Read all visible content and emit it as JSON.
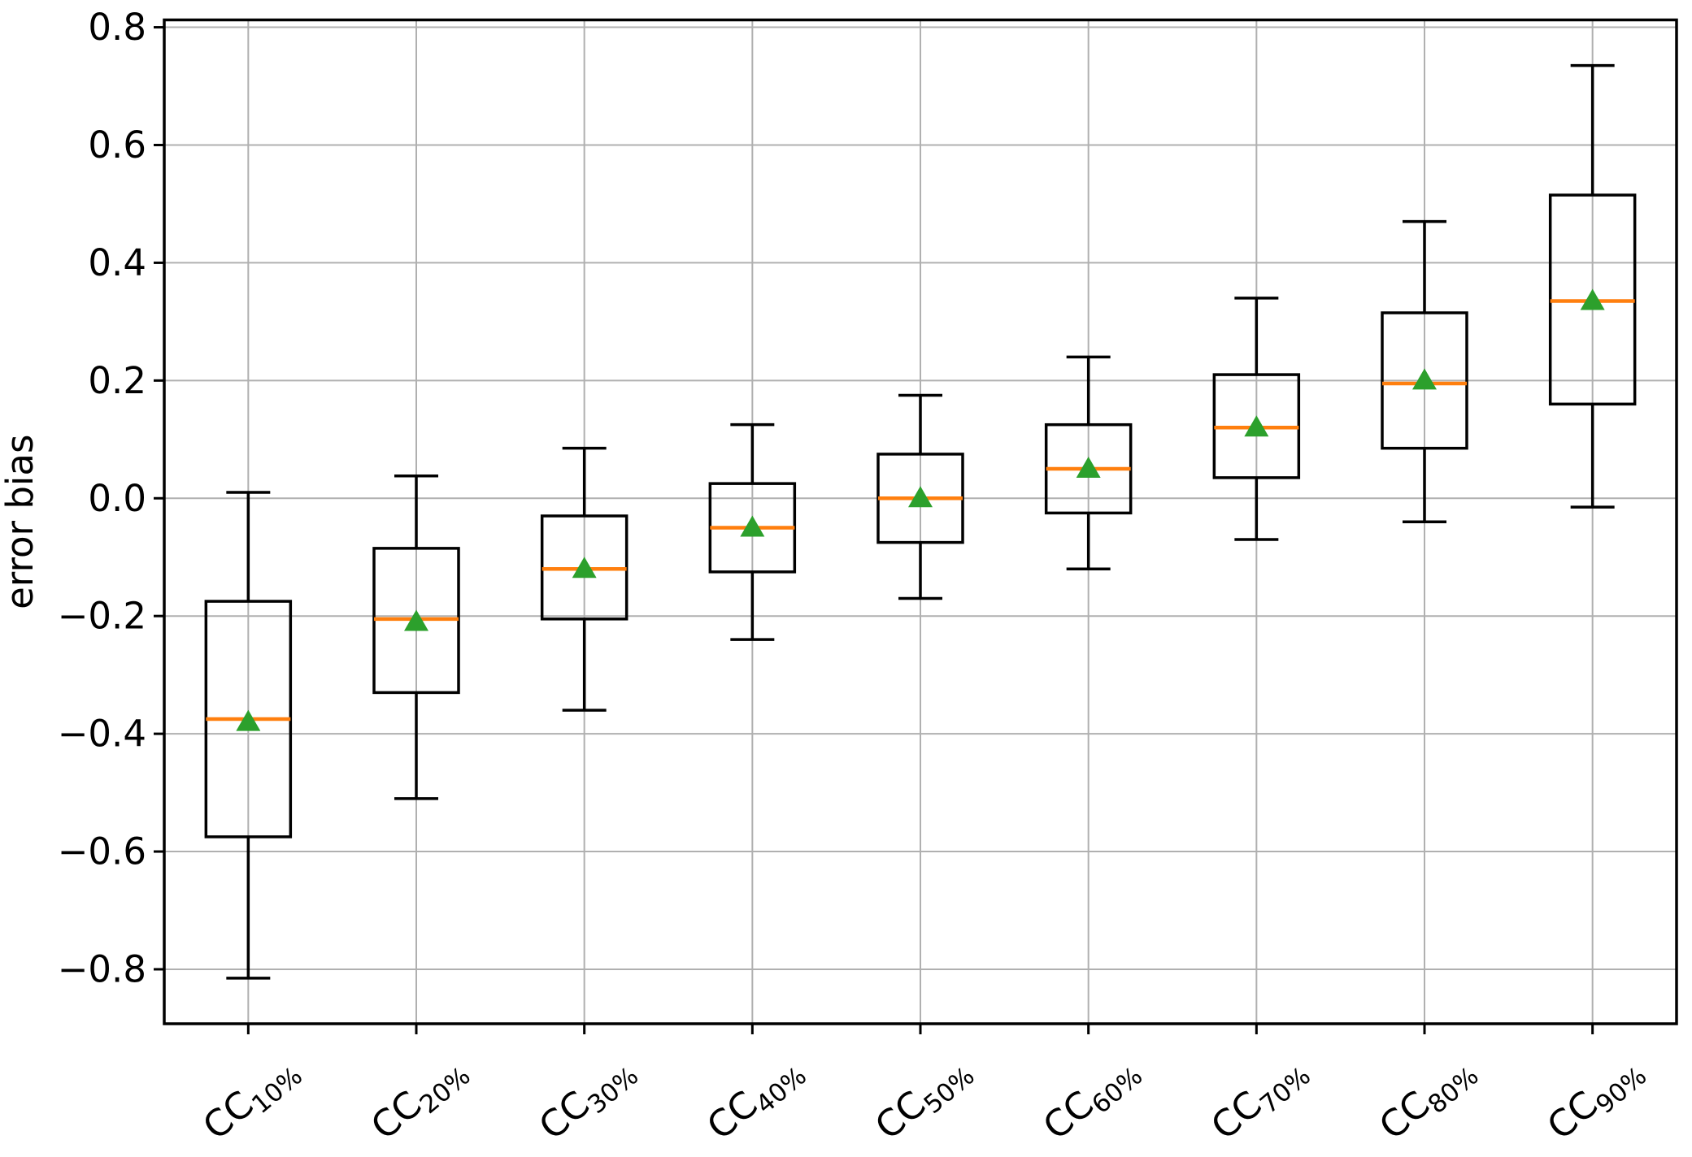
{
  "chart_data": {
    "type": "boxplot",
    "title": "",
    "xlabel": "",
    "ylabel": "error bias",
    "ylim": [
      -0.8925,
      0.8125
    ],
    "yticks": [
      0.8,
      0.6,
      0.4,
      0.2,
      0.0,
      -0.2,
      -0.4,
      -0.6,
      -0.8
    ],
    "ytick_labels": [
      "0.8",
      "0.6",
      "0.4",
      "0.2",
      "0.0",
      "−0.2",
      "−0.4",
      "−0.6",
      "−0.8"
    ],
    "grid": true,
    "legend": false,
    "categories": [
      {
        "base": "CC",
        "sub": "10%",
        "display": "CC10%"
      },
      {
        "base": "CC",
        "sub": "20%",
        "display": "CC20%"
      },
      {
        "base": "CC",
        "sub": "30%",
        "display": "CC30%"
      },
      {
        "base": "CC",
        "sub": "40%",
        "display": "CC40%"
      },
      {
        "base": "CC",
        "sub": "50%",
        "display": "CC50%"
      },
      {
        "base": "CC",
        "sub": "60%",
        "display": "CC60%"
      },
      {
        "base": "CC",
        "sub": "70%",
        "display": "CC70%"
      },
      {
        "base": "CC",
        "sub": "80%",
        "display": "CC80%"
      },
      {
        "base": "CC",
        "sub": "90%",
        "display": "CC90%"
      }
    ],
    "series": [
      {
        "label": "CC10%",
        "whisker_low": -0.815,
        "q1": -0.575,
        "median": -0.375,
        "mean": -0.38,
        "q3": -0.175,
        "whisker_high": 0.01
      },
      {
        "label": "CC20%",
        "whisker_low": -0.51,
        "q1": -0.33,
        "median": -0.205,
        "mean": -0.21,
        "q3": -0.085,
        "whisker_high": 0.038
      },
      {
        "label": "CC30%",
        "whisker_low": -0.36,
        "q1": -0.205,
        "median": -0.12,
        "mean": -0.12,
        "q3": -0.03,
        "whisker_high": 0.085
      },
      {
        "label": "CC40%",
        "whisker_low": -0.24,
        "q1": -0.125,
        "median": -0.05,
        "mean": -0.05,
        "q3": 0.025,
        "whisker_high": 0.125
      },
      {
        "label": "CC50%",
        "whisker_low": -0.17,
        "q1": -0.075,
        "median": 0.0,
        "mean": 0.0,
        "q3": 0.075,
        "whisker_high": 0.175
      },
      {
        "label": "CC60%",
        "whisker_low": -0.12,
        "q1": -0.025,
        "median": 0.05,
        "mean": 0.05,
        "q3": 0.125,
        "whisker_high": 0.24
      },
      {
        "label": "CC70%",
        "whisker_low": -0.07,
        "q1": 0.035,
        "median": 0.12,
        "mean": 0.12,
        "q3": 0.21,
        "whisker_high": 0.34
      },
      {
        "label": "CC80%",
        "whisker_low": -0.04,
        "q1": 0.085,
        "median": 0.195,
        "mean": 0.2,
        "q3": 0.315,
        "whisker_high": 0.47
      },
      {
        "label": "CC90%",
        "whisker_low": -0.015,
        "q1": 0.16,
        "median": 0.335,
        "mean": 0.335,
        "q3": 0.515,
        "whisker_high": 0.735
      }
    ],
    "style": {
      "box_color": "#000000",
      "median_color": "#ff7f0e",
      "mean_color": "#2ca02c",
      "mean_marker": "triangle-up",
      "grid_color": "#b0b0b0",
      "background": "#ffffff",
      "xtick_rotation_deg": 40
    }
  }
}
